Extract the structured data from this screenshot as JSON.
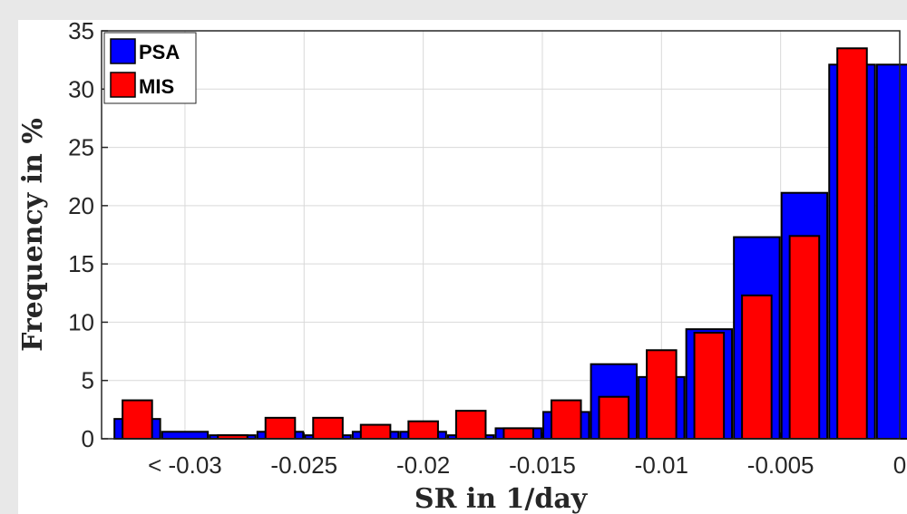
{
  "chart_data": {
    "type": "bar",
    "title": "",
    "xlabel": "SR in 1/day",
    "ylabel": "Frequency in %",
    "xlim": [
      -0.0335,
      0
    ],
    "ylim": [
      0,
      35
    ],
    "x_ticks": [
      {
        "value": -0.03,
        "label": "< -0.03"
      },
      {
        "value": -0.025,
        "label": "-0.025"
      },
      {
        "value": -0.02,
        "label": "-0.02"
      },
      {
        "value": -0.015,
        "label": "-0.015"
      },
      {
        "value": -0.01,
        "label": "-0.01"
      },
      {
        "value": -0.005,
        "label": "-0.005"
      },
      {
        "value": 0,
        "label": "0"
      }
    ],
    "y_ticks": [
      0,
      5,
      10,
      15,
      20,
      25,
      30,
      35
    ],
    "grid": true,
    "legend_position": "top-left",
    "bin_width": 0.002,
    "bin_centers": [
      -0.032,
      -0.03,
      -0.028,
      -0.026,
      -0.024,
      -0.022,
      -0.02,
      -0.018,
      -0.016,
      -0.014,
      -0.012,
      -0.01,
      -0.008,
      -0.006,
      -0.004,
      -0.002,
      0
    ],
    "series": [
      {
        "name": "PSA",
        "color": "#0000ff",
        "values": [
          1.7,
          0.6,
          0.3,
          0.6,
          0.3,
          0.6,
          0.6,
          0.3,
          0.9,
          2.3,
          6.4,
          5.3,
          9.4,
          17.3,
          21.1,
          32.1,
          32.1
        ]
      },
      {
        "name": "MIS",
        "color": "#ff0000",
        "values": [
          3.3,
          null,
          0.3,
          1.8,
          1.8,
          1.2,
          1.5,
          2.4,
          0.9,
          3.3,
          3.6,
          7.6,
          9.1,
          12.3,
          17.4,
          33.5,
          null
        ]
      }
    ]
  }
}
